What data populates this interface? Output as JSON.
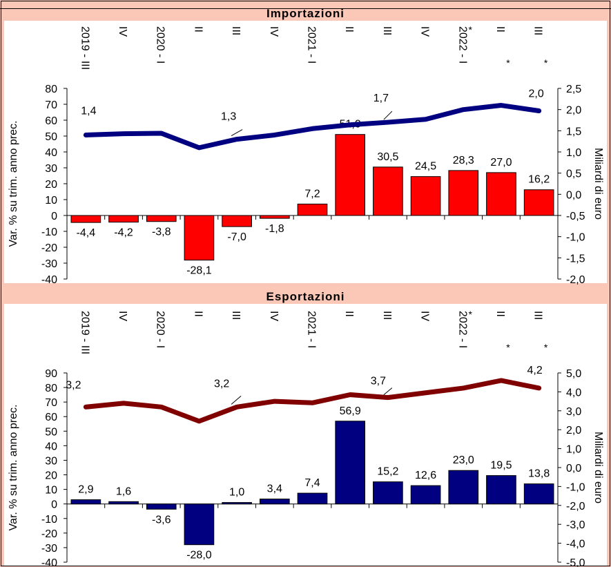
{
  "chart_data": [
    {
      "type": "bar",
      "title": "Importazioni",
      "categories": [
        "2019 - III",
        "IV",
        "2020 - I",
        "II",
        "III",
        "IV",
        "2021 - I",
        "II",
        "III",
        "IV",
        "2022 - I",
        "II",
        "III"
      ],
      "category_marks": [
        "",
        "",
        "",
        "",
        "",
        "",
        "",
        "",
        "",
        "",
        "*",
        "*",
        "*"
      ],
      "series": [
        {
          "type": "bar",
          "axis": "left",
          "color": "#ff0000",
          "values": [
            -4.4,
            -4.2,
            -3.8,
            -28.1,
            -7.0,
            -1.8,
            7.2,
            51.0,
            30.5,
            24.5,
            28.3,
            27.0,
            16.2
          ],
          "labels": [
            "-4,4",
            "-4,2",
            "-3,8",
            "-28,1",
            "-7,0",
            "-1,8",
            "7,2",
            "51,0",
            "30,5",
            "24,5",
            "28,3",
            "27,0",
            "16,2"
          ]
        },
        {
          "type": "line",
          "axis": "right",
          "color": "#000080",
          "values": [
            1.4,
            1.43,
            1.44,
            1.1,
            1.3,
            1.4,
            1.55,
            1.64,
            1.7,
            1.77,
            2.0,
            2.1,
            1.97
          ],
          "point_labels": [
            {
              "index": 0,
              "text": "1,4"
            },
            {
              "index": 4,
              "text": "1,3"
            },
            {
              "index": 8,
              "text": "1,7"
            },
            {
              "index": 12,
              "text": "2,0"
            }
          ]
        }
      ],
      "ylabel": "Var. % su trim. anno prec.",
      "y2label": "Miliardi di euro",
      "ylim": [
        -40,
        80
      ],
      "y2lim": [
        -2.0,
        2.5
      ],
      "yticks": [
        "80",
        "70",
        "60",
        "50",
        "40",
        "30",
        "20",
        "10",
        "0",
        "-10",
        "-20",
        "-30",
        "-40"
      ],
      "y2ticks": [
        "2,5",
        "2,0",
        "1,5",
        "1,0",
        "0,5",
        "0,0",
        "-0,5",
        "-1,0",
        "-1,5",
        "-2,0"
      ]
    },
    {
      "type": "bar",
      "title": "Esportazioni",
      "categories": [
        "2019 - III",
        "IV",
        "2020 - I",
        "II",
        "III",
        "IV",
        "2021 - I",
        "II",
        "III",
        "IV",
        "2022 - I",
        "II",
        "III"
      ],
      "category_marks": [
        "",
        "",
        "",
        "",
        "",
        "",
        "",
        "",
        "",
        "",
        "*",
        "*",
        "*"
      ],
      "series": [
        {
          "type": "bar",
          "axis": "left",
          "color": "#000080",
          "values": [
            2.9,
            1.6,
            -3.6,
            -28.0,
            1.0,
            3.4,
            7.4,
            56.9,
            15.2,
            12.6,
            23.0,
            19.5,
            13.8
          ],
          "labels": [
            "2,9",
            "1,6",
            "-3,6",
            "-28,0",
            "1,0",
            "3,4",
            "7,4",
            "56,9",
            "15,2",
            "12,6",
            "23,0",
            "19,5",
            "13,8"
          ]
        },
        {
          "type": "line",
          "axis": "right",
          "color": "#800000",
          "values": [
            3.2,
            3.4,
            3.2,
            2.45,
            3.2,
            3.5,
            3.42,
            3.85,
            3.7,
            3.95,
            4.2,
            4.6,
            4.2
          ],
          "point_labels": [
            {
              "index": 0,
              "text": "3,2"
            },
            {
              "index": 4,
              "text": "3,2"
            },
            {
              "index": 8,
              "text": "3,7"
            },
            {
              "index": 12,
              "text": "4,2"
            }
          ]
        }
      ],
      "ylabel": "Var. % su trim. anno prec.",
      "y2label": "Miliardi di euro",
      "ylim": [
        -40,
        90
      ],
      "y2lim": [
        -5.0,
        5.0
      ],
      "yticks": [
        "90",
        "80",
        "70",
        "60",
        "50",
        "40",
        "30",
        "20",
        "10",
        "0",
        "-10",
        "-20",
        "-30",
        "-40"
      ],
      "y2ticks": [
        "5,0",
        "4,0",
        "3,0",
        "2,0",
        "1,0",
        "0,0",
        "-1,0",
        "-2,0",
        "-3,0",
        "-4,0",
        "-5,0"
      ]
    }
  ]
}
